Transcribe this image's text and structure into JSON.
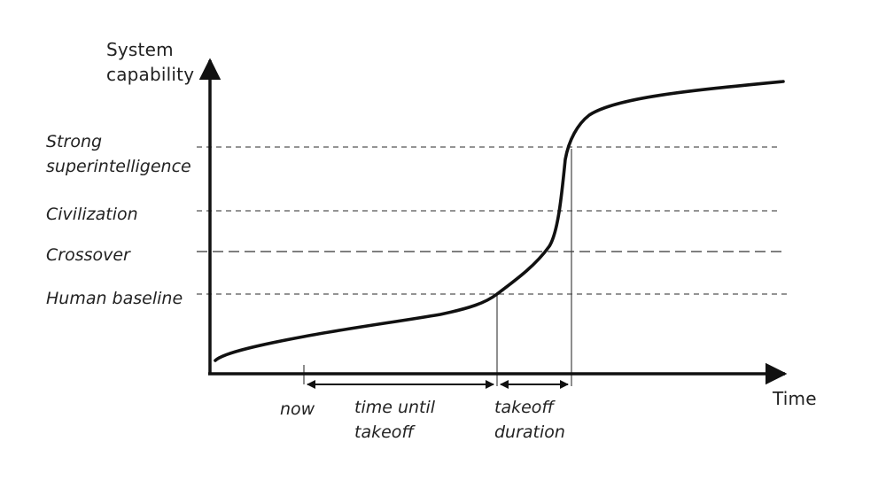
{
  "axes": {
    "y_label_line1": "System",
    "y_label_line2": "capability",
    "x_label": "Time"
  },
  "levels": [
    {
      "label_line1": "Strong",
      "label_line2": "superintelligence"
    },
    {
      "label_line1": "Civilization"
    },
    {
      "label_line1": "Crossover"
    },
    {
      "label_line1": "Human baseline"
    }
  ],
  "annotations": {
    "now": "now",
    "time_until_line1": "time until",
    "time_until_line2": "takeoff",
    "takeoff_line1": "takeoff",
    "takeoff_line2": "duration"
  },
  "colors": {
    "curve": "#111111",
    "axis": "#111111",
    "guide": "#555555",
    "text": "#222222"
  }
}
